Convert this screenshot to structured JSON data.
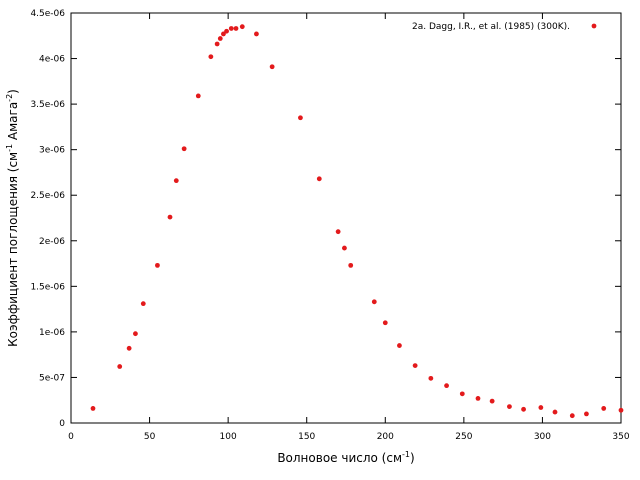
{
  "chart_data": {
    "type": "scatter",
    "xlabel": {
      "base": "Волновое число (см",
      "sup": "-1",
      "tail": ")"
    },
    "ylabel": {
      "base": "Коэффициент поглощения (см",
      "sup1": "-1",
      "mid": " Амага",
      "sup2": "-2",
      "tail": ")"
    },
    "xlim": [
      0,
      350
    ],
    "ylim": [
      0,
      4.5e-06
    ],
    "x_ticks": [
      {
        "v": 0,
        "label": "0"
      },
      {
        "v": 50,
        "label": "50"
      },
      {
        "v": 100,
        "label": "100"
      },
      {
        "v": 150,
        "label": "150"
      },
      {
        "v": 200,
        "label": "200"
      },
      {
        "v": 250,
        "label": "250"
      },
      {
        "v": 300,
        "label": "300"
      },
      {
        "v": 350,
        "label": "350"
      }
    ],
    "y_ticks": [
      {
        "v": 0,
        "label": "0"
      },
      {
        "v": 5e-07,
        "label": "5e-07"
      },
      {
        "v": 1e-06,
        "label": "1e-06"
      },
      {
        "v": 1.5e-06,
        "label": "1.5e-06"
      },
      {
        "v": 2e-06,
        "label": "2e-06"
      },
      {
        "v": 2.5e-06,
        "label": "2.5e-06"
      },
      {
        "v": 3e-06,
        "label": "3e-06"
      },
      {
        "v": 3.5e-06,
        "label": "3.5e-06"
      },
      {
        "v": 4e-06,
        "label": "4e-06"
      },
      {
        "v": 4.5e-06,
        "label": "4.5e-06"
      }
    ],
    "grid": false,
    "legend_position": "top-right",
    "color": "#e31a1c",
    "series": [
      {
        "name": "2a. Dagg, I.R., et al. (1985) (300K).",
        "points": [
          [
            14,
            1.6e-07
          ],
          [
            31,
            6.2e-07
          ],
          [
            37,
            8.2e-07
          ],
          [
            41,
            9.8e-07
          ],
          [
            46,
            1.31e-06
          ],
          [
            55,
            1.73e-06
          ],
          [
            63,
            2.26e-06
          ],
          [
            67,
            2.66e-06
          ],
          [
            72,
            3.01e-06
          ],
          [
            81,
            3.59e-06
          ],
          [
            89,
            4.02e-06
          ],
          [
            93,
            4.16e-06
          ],
          [
            95,
            4.22e-06
          ],
          [
            97,
            4.27e-06
          ],
          [
            99,
            4.3e-06
          ],
          [
            102,
            4.33e-06
          ],
          [
            105,
            4.33e-06
          ],
          [
            109,
            4.35e-06
          ],
          [
            118,
            4.27e-06
          ],
          [
            128,
            3.91e-06
          ],
          [
            146,
            3.35e-06
          ],
          [
            158,
            2.68e-06
          ],
          [
            170,
            2.1e-06
          ],
          [
            174,
            1.92e-06
          ],
          [
            178,
            1.73e-06
          ],
          [
            193,
            1.33e-06
          ],
          [
            200,
            1.1e-06
          ],
          [
            209,
            8.5e-07
          ],
          [
            219,
            6.3e-07
          ],
          [
            229,
            4.9e-07
          ],
          [
            239,
            4.1e-07
          ],
          [
            249,
            3.2e-07
          ],
          [
            259,
            2.7e-07
          ],
          [
            268,
            2.4e-07
          ],
          [
            279,
            1.8e-07
          ],
          [
            288,
            1.5e-07
          ],
          [
            299,
            1.7e-07
          ],
          [
            308,
            1.2e-07
          ],
          [
            319,
            8e-08
          ],
          [
            328,
            1e-07
          ],
          [
            339,
            1.6e-07
          ],
          [
            350,
            1.4e-07
          ]
        ]
      }
    ]
  }
}
